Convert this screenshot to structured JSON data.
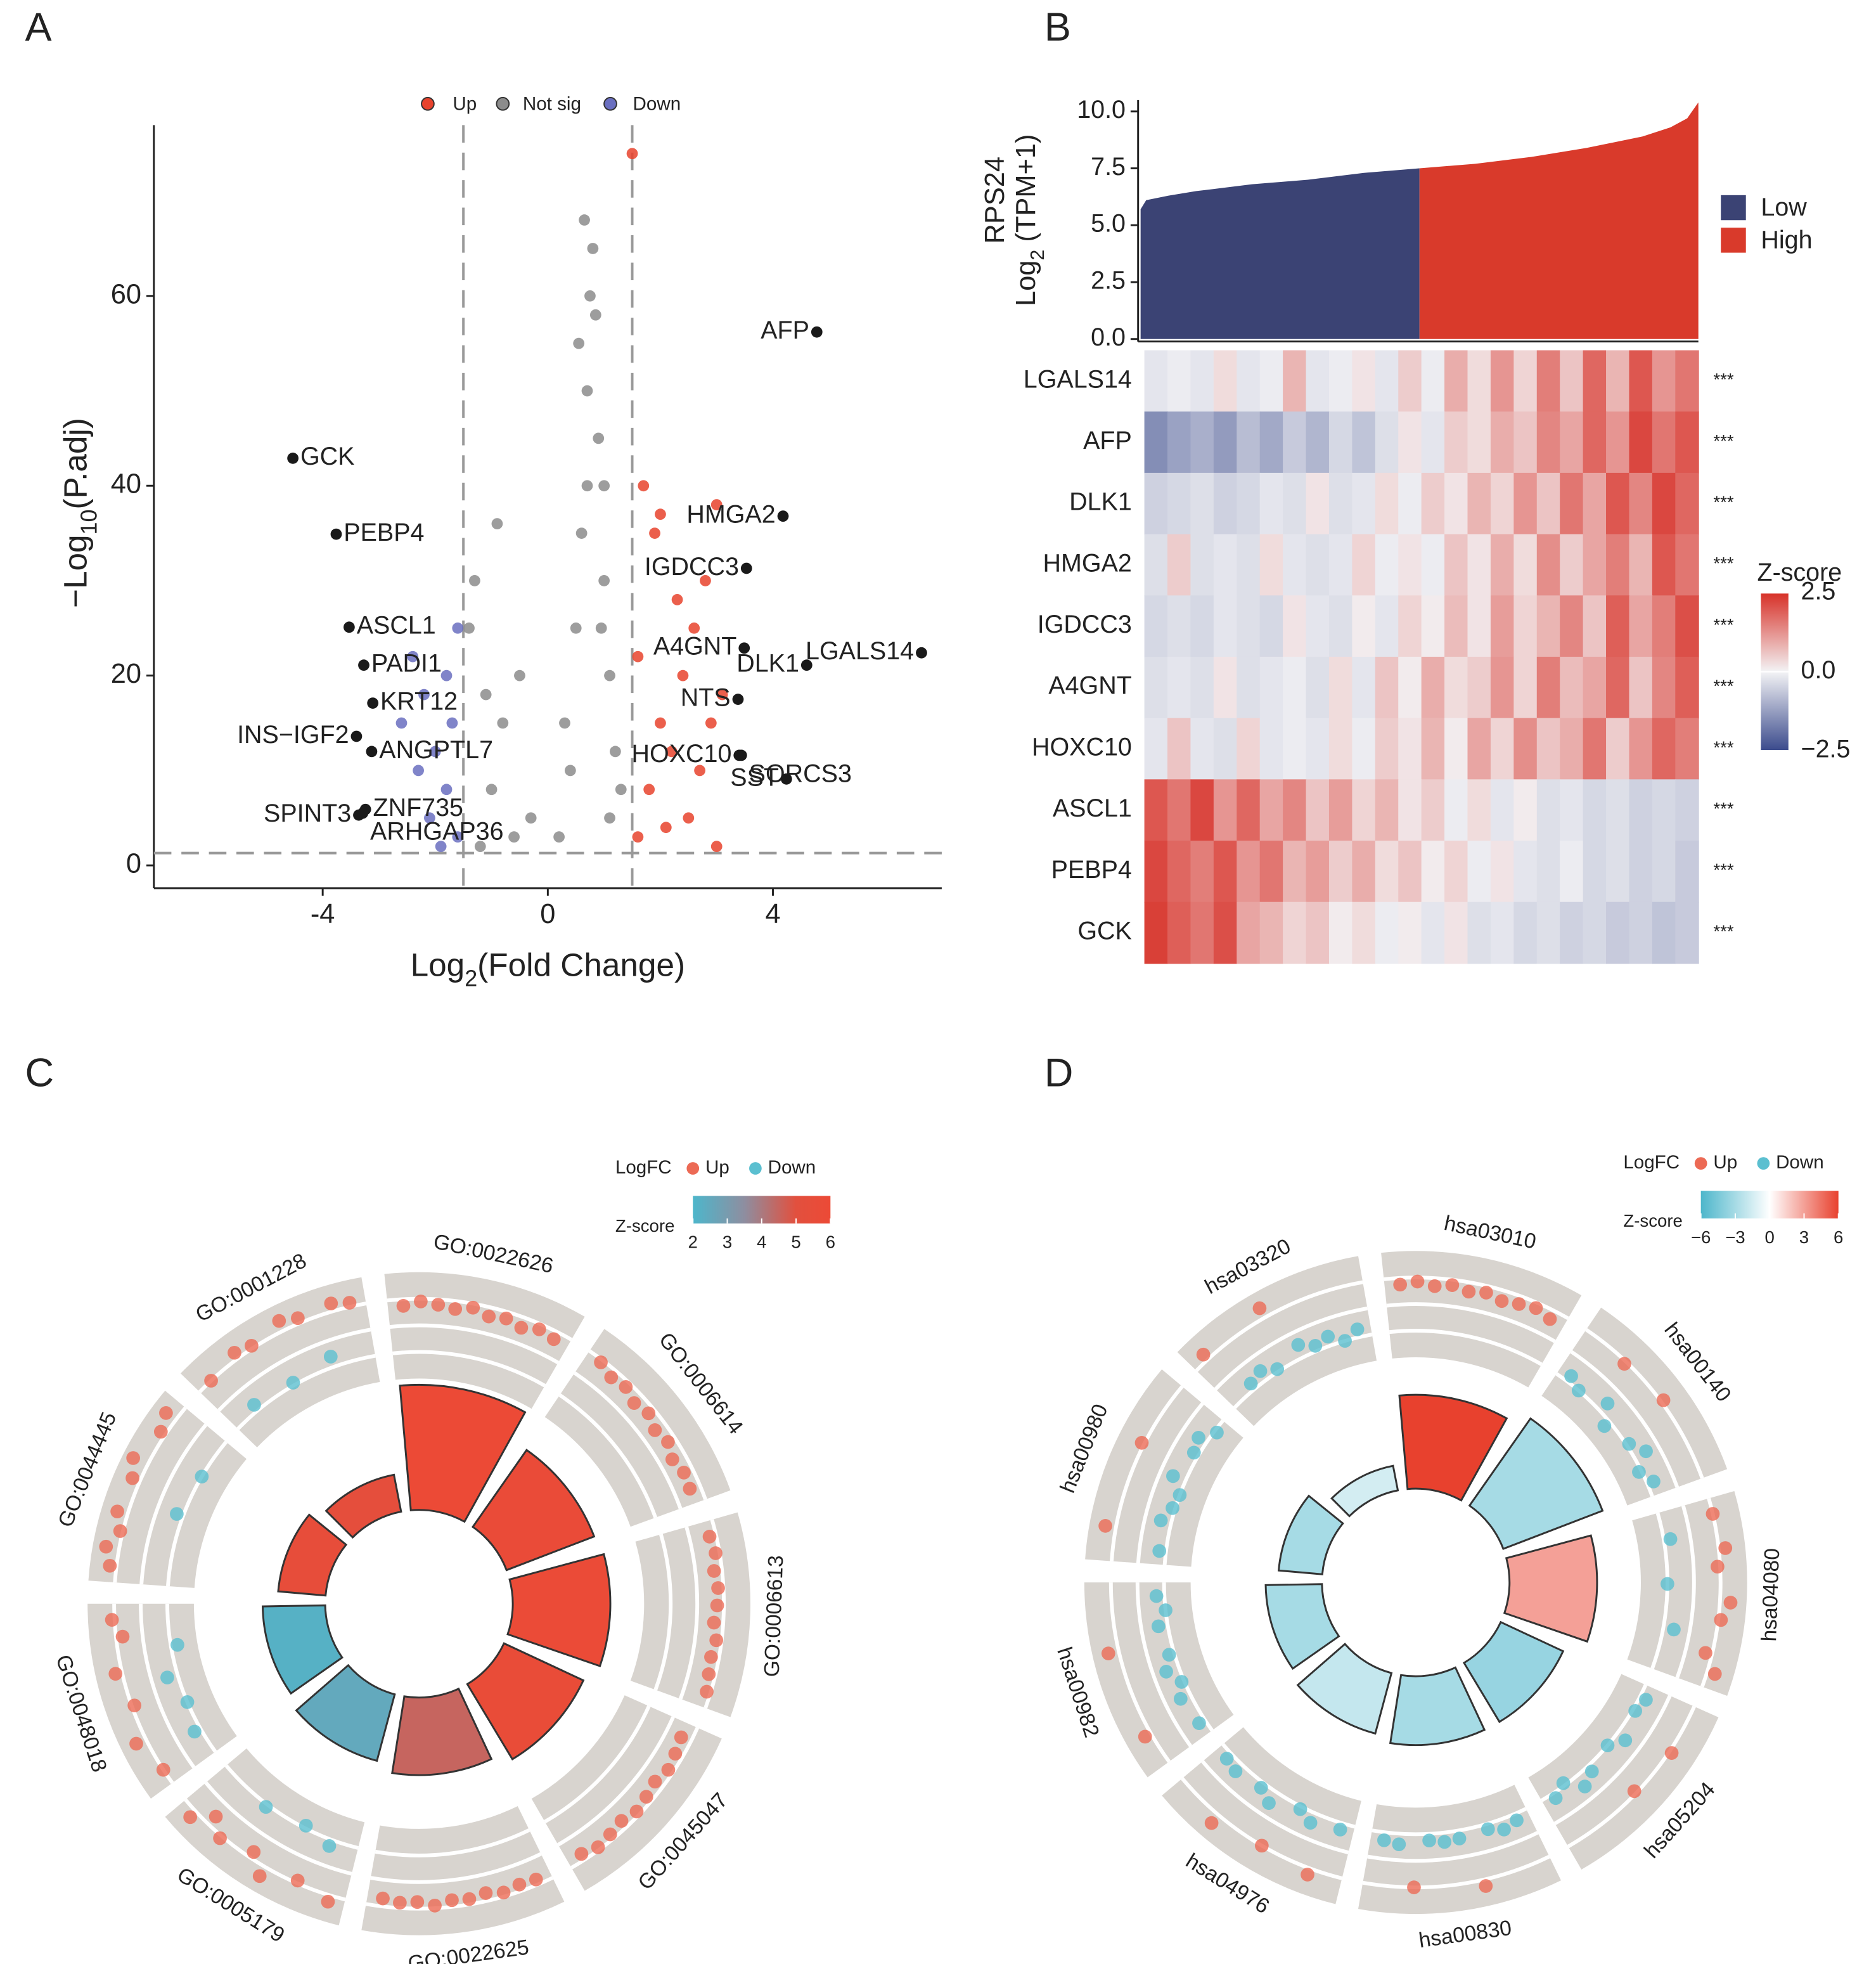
{
  "panels": [
    "A",
    "B",
    "C",
    "D"
  ],
  "chart_data": [
    {
      "type": "scatter",
      "x_label": [
        "Log",
        "2",
        "(Fold Change)"
      ],
      "y_label": [
        "−Log",
        "10",
        "(P.adj)"
      ],
      "xlim": [
        -7,
        7
      ],
      "ylim": [
        -2.4,
        78
      ],
      "xticks": [
        -4,
        0,
        4
      ],
      "yticks": [
        0,
        20,
        40,
        60
      ],
      "thresholds": {
        "x": [
          -1.5,
          1.5
        ],
        "y": 1.3
      },
      "series": [
        {
          "name": "Up",
          "color": "#e8432d",
          "x": [
            1.6,
            1.8,
            2.0,
            2.2,
            2.4,
            2.6,
            2.8,
            3.0,
            2.5,
            1.9,
            1.7,
            2.3,
            3.1,
            2.7,
            1.6,
            2.1,
            3.0,
            2.9,
            2.0,
            1.5
          ],
          "values": [
            3,
            8,
            15,
            12,
            20,
            25,
            30,
            38,
            5,
            35,
            40,
            28,
            18,
            10,
            22,
            4,
            2,
            15,
            37,
            75
          ]
        },
        {
          "name": "Not sig",
          "color": "#8c8c8c",
          "x": [
            -1.2,
            -1,
            -0.8,
            -0.5,
            -0.3,
            0.2,
            0.4,
            0.5,
            0.6,
            0.7,
            0.75,
            0.8,
            0.9,
            1.0,
            1.1,
            1.2,
            1.3,
            -1.4,
            -1.3,
            -0.9,
            0.65,
            0.55,
            1.0,
            0.3,
            -0.6,
            0.85,
            1.1,
            -1.1,
            0.95,
            0.7
          ],
          "values": [
            2,
            8,
            15,
            20,
            5,
            3,
            10,
            25,
            35,
            50,
            60,
            65,
            45,
            30,
            20,
            12,
            8,
            25,
            30,
            36,
            68,
            55,
            40,
            15,
            3,
            58,
            5,
            18,
            25,
            40
          ]
        },
        {
          "name": "Down",
          "color": "#6a6fc0",
          "x": [
            -1.6,
            -1.8,
            -2.0,
            -2.2,
            -2.4,
            -1.7,
            -1.9,
            -2.1,
            -2.6,
            -1.6,
            -2.3,
            -1.8
          ],
          "values": [
            3,
            8,
            12,
            18,
            22,
            15,
            2,
            5,
            15,
            25,
            10,
            20
          ]
        }
      ],
      "labeled": {
        "color": "#1a1a1a",
        "names": [
          "AFP",
          "GCK",
          "PEBP4",
          "HMGA2",
          "IGDCC3",
          "ASCL1",
          "A4GNT",
          "LGALS14",
          "PADI1",
          "DLK1",
          "NTS",
          "KRT12",
          "INS−IGF2",
          "ANGPTL7",
          "HOXC10",
          "SORCS3",
          "SST",
          "ZNF735",
          "SPINT3",
          "ARHGAP36"
        ],
        "x": [
          4.78,
          -4.53,
          -3.76,
          4.18,
          3.53,
          -3.53,
          3.49,
          6.64,
          -3.27,
          4.6,
          3.38,
          -3.11,
          -3.4,
          -3.13,
          3.4,
          3.44,
          4.24,
          -3.24,
          -3.36,
          -3.29
        ],
        "values": [
          56.2,
          42.9,
          34.9,
          36.8,
          31.3,
          25.1,
          22.9,
          22.4,
          21.1,
          21.1,
          17.5,
          17.1,
          13.6,
          12.0,
          11.6,
          11.6,
          9.1,
          5.9,
          5.3,
          5.5
        ]
      }
    },
    {
      "type": "area",
      "y_title": "RPS24",
      "y_label": [
        "Log",
        "2",
        " (TPM+1)"
      ],
      "xlim": [
        0,
        1
      ],
      "ylim": [
        0,
        10.5
      ],
      "yticks": [
        {
          "value": 0,
          "label": "0.0"
        },
        2.5,
        {
          "value": 5,
          "label": "5.0"
        },
        7.5,
        {
          "value": 10,
          "label": "10.0"
        }
      ],
      "series": [
        {
          "name": "Low",
          "color": "#3b4374",
          "x": [
            0,
            0.01,
            0.05,
            0.1,
            0.2,
            0.3,
            0.4,
            0.5
          ],
          "values": [
            5.7,
            6.1,
            6.3,
            6.5,
            6.8,
            7.0,
            7.3,
            7.5
          ]
        },
        {
          "name": "High",
          "color": "#d93a2b",
          "x": [
            0.5,
            0.6,
            0.7,
            0.8,
            0.9,
            0.95,
            0.98,
            1.0
          ],
          "values": [
            7.5,
            7.7,
            8.0,
            8.4,
            8.9,
            9.3,
            9.7,
            10.4
          ]
        }
      ]
    },
    {
      "type": "heatmap",
      "rows": [
        "LGALS14",
        "AFP",
        "DLK1",
        "HMGA2",
        "IGDCC3",
        "A4GNT",
        "HOXC10",
        "ASCL1",
        "PEBP4",
        "GCK"
      ],
      "values": [
        [
          -0.2,
          -0.1,
          -0.2,
          0.3,
          -0.2,
          -0.1,
          0.8,
          -0.2,
          -0.1,
          0.2,
          -0.2,
          0.5,
          -0.1,
          0.9,
          0.3,
          1.2,
          0.4,
          1.5,
          0.6,
          1.8,
          0.8,
          2.0,
          1.2,
          1.6
        ],
        [
          -1.5,
          -1.2,
          -1.0,
          -1.3,
          -0.8,
          -1.1,
          -0.6,
          -0.9,
          -0.4,
          -0.7,
          -0.3,
          0.2,
          -0.2,
          0.5,
          0.3,
          0.9,
          0.6,
          1.4,
          1.0,
          1.8,
          1.2,
          2.2,
          1.6,
          2.0
        ],
        [
          -0.5,
          -0.4,
          -0.3,
          -0.5,
          -0.4,
          -0.2,
          -0.3,
          0.2,
          -0.3,
          -0.2,
          0.3,
          -0.1,
          0.5,
          0.2,
          0.8,
          0.4,
          1.2,
          0.6,
          1.6,
          1.0,
          2.0,
          1.4,
          2.2,
          1.8
        ],
        [
          -0.3,
          0.5,
          -0.3,
          -0.2,
          -0.3,
          0.3,
          -0.2,
          -0.3,
          -0.2,
          0.4,
          -0.1,
          0.2,
          -0.1,
          0.6,
          0.2,
          0.9,
          0.3,
          1.3,
          0.5,
          1.0,
          1.5,
          0.8,
          2.0,
          1.6
        ],
        [
          -0.4,
          -0.3,
          -0.4,
          -0.2,
          -0.3,
          -0.4,
          0.2,
          -0.2,
          -0.3,
          0.1,
          -0.2,
          0.4,
          0.1,
          0.7,
          0.2,
          1.1,
          0.4,
          0.8,
          1.4,
          0.6,
          1.9,
          1.0,
          1.5,
          2.1
        ],
        [
          -0.3,
          -0.2,
          -0.3,
          0.2,
          -0.3,
          -0.2,
          -0.1,
          -0.3,
          0.3,
          -0.2,
          0.6,
          0.1,
          0.9,
          0.3,
          0.5,
          1.2,
          0.4,
          1.5,
          0.7,
          1.0,
          1.8,
          0.6,
          1.4,
          1.9
        ],
        [
          -0.2,
          0.6,
          -0.2,
          -0.3,
          0.4,
          -0.2,
          -0.1,
          -0.2,
          0.3,
          -0.1,
          0.5,
          0.2,
          0.8,
          0.1,
          1.0,
          0.4,
          1.3,
          0.6,
          0.9,
          1.6,
          0.5,
          1.2,
          1.8,
          1.5
        ],
        [
          2.0,
          1.6,
          2.2,
          1.2,
          1.8,
          1.0,
          1.4,
          0.6,
          1.1,
          0.4,
          0.8,
          0.2,
          0.5,
          -0.1,
          0.3,
          -0.2,
          0.1,
          -0.3,
          -0.2,
          -0.4,
          -0.3,
          -0.5,
          -0.4,
          -0.5
        ],
        [
          2.2,
          1.8,
          1.5,
          2.0,
          1.2,
          1.6,
          0.8,
          1.1,
          0.5,
          0.9,
          0.3,
          0.6,
          0.1,
          0.4,
          -0.1,
          0.2,
          -0.2,
          -0.3,
          -0.1,
          -0.4,
          -0.3,
          -0.5,
          -0.4,
          -0.6
        ],
        [
          2.3,
          1.9,
          1.6,
          2.1,
          1.0,
          0.8,
          0.4,
          0.6,
          0.1,
          0.3,
          -0.1,
          0.1,
          -0.2,
          0.2,
          -0.3,
          -0.2,
          -0.4,
          -0.3,
          -0.5,
          -0.4,
          -0.6,
          -0.5,
          -0.7,
          -0.6
        ]
      ],
      "significance": [
        "***",
        "***",
        "***",
        "***",
        "***",
        "***",
        "***",
        "***",
        "***",
        "***"
      ],
      "legend_title": "Z-score",
      "zlim": [
        -2.5,
        2.5
      ],
      "zticks": [
        2.5,
        {
          "value": 0,
          "label": "0.0"
        },
        {
          "value": -2.5,
          "label": "−2.5"
        }
      ],
      "colorscale": [
        [
          -2.5,
          "#3a4a8c"
        ],
        [
          0,
          "#f3f3f5"
        ],
        [
          2.5,
          "#d73027"
        ]
      ]
    },
    {
      "type": "circos",
      "terms": [
        "GO:0022626",
        "GO:0006614",
        "GO:0006613",
        "GO:0045047",
        "GO:0022625",
        "GO:0005179",
        "GO:0048018",
        "GO:0044445",
        "GO:0001228"
      ],
      "counts": [
        100,
        75,
        78,
        70,
        62,
        55,
        50,
        38,
        30
      ],
      "countlim": [
        0,
        100
      ],
      "zscores": [
        6,
        5.8,
        5.9,
        5.7,
        4.5,
        2.5,
        2.2,
        5.5,
        5.3
      ],
      "logfc": [
        [
          1.5,
          1.8,
          1.6,
          1.4,
          1.7,
          1.3,
          1.5,
          1.2,
          1.6,
          1.4
        ],
        [
          1.8,
          1.4,
          1.6,
          1.2,
          1.5,
          1.1,
          1.4,
          1.0,
          1.3,
          1.2
        ],
        [
          1.5,
          1.7,
          1.4,
          1.6,
          1.5,
          1.3,
          1.6,
          1.4,
          1.5,
          1.7
        ],
        [
          1.2,
          1.4,
          1.6,
          1.3,
          1.5,
          1.7,
          1.4,
          1.6,
          1.8,
          1.5
        ],
        [
          1.6,
          1.5,
          1.7,
          1.4,
          1.6,
          1.5,
          1.8,
          1.5,
          1.6,
          1.4
        ],
        [
          2.5,
          -1.5,
          1.8,
          -2.2,
          2.8,
          1.5,
          -1.8,
          2.2,
          1.2,
          2.6
        ],
        [
          2.0,
          -1.5,
          2.8,
          -2.0,
          1.8,
          -1.2,
          2.5,
          -2.5,
          1.5,
          2.2
        ],
        [
          2.5,
          3.0,
          2.2,
          2.8,
          -1.5,
          2.6,
          3.2,
          -2.0,
          2.4,
          2.9
        ],
        [
          2.0,
          -1.5,
          2.5,
          2.2,
          -1.8,
          2.8,
          2.4,
          -1.2,
          2.6,
          2.3
        ]
      ],
      "rlim": [
        -4,
        4
      ],
      "rgrid": [
        -2,
        0,
        2
      ],
      "legend": {
        "logfc_title": "LogFC",
        "up": "Up",
        "down": "Down",
        "z_title": "Z-score"
      },
      "up_color": "#ec6a55",
      "down_color": "#5bbfd0",
      "zticks": [
        2,
        3,
        4,
        5,
        6
      ],
      "colorscale": [
        [
          2,
          "#4db6cb"
        ],
        [
          3.5,
          "#8e8ea0"
        ],
        [
          5,
          "#e2503e"
        ],
        [
          6,
          "#ec4a36"
        ]
      ]
    },
    {
      "type": "circos",
      "terms": [
        "hsa03010",
        "hsa00140",
        "hsa04080",
        "hsa05204",
        "hsa00830",
        "hsa04976",
        "hsa00982",
        "hsa00980",
        "hsa03320"
      ],
      "counts": [
        75,
        85,
        70,
        55,
        55,
        50,
        45,
        35,
        20
      ],
      "countlim": [
        0,
        100
      ],
      "zscores": [
        6,
        -3,
        3,
        -3.5,
        -3,
        -2,
        -3,
        -3,
        -1.5
      ],
      "logfc": [
        [
          1.5,
          1.7,
          1.4,
          1.6,
          1.3,
          1.5,
          1.2,
          1.4,
          1.6,
          1.3
        ],
        [
          -1.5,
          -2.0,
          1.8,
          -1.2,
          -2.5,
          2.2,
          -1.8,
          -1.0,
          -2.2,
          -1.5
        ],
        [
          2.0,
          -1.5,
          2.5,
          1.8,
          -2.0,
          2.8,
          2.2,
          -1.2,
          1.5,
          2.6
        ],
        [
          -1.5,
          -1.8,
          2.2,
          -1.2,
          -2.0,
          1.8,
          -1.5,
          -1.0,
          -2.2,
          -1.6
        ],
        [
          -1.5,
          -1.2,
          -1.6,
          2.5,
          -1.4,
          -1.3,
          -1.5,
          2.0,
          -1.2,
          -1.4
        ],
        [
          -1.5,
          2.5,
          -1.2,
          -1.8,
          2.0,
          -1.0,
          -1.6,
          2.8,
          -1.3,
          -1.5
        ],
        [
          -1.5,
          2.5,
          -1.2,
          -1.8,
          -1.0,
          -1.6,
          2.8,
          -1.3,
          -2.0,
          -1.4
        ],
        [
          -1.5,
          2.8,
          -1.2,
          -1.8,
          -2.0,
          -1.0,
          2.2,
          -1.6,
          -1.3,
          -2.2
        ],
        [
          2.5,
          -1.5,
          -1.2,
          -1.8,
          2.8,
          -1.0,
          -1.6,
          -1.3,
          -2.0,
          -1.4
        ]
      ],
      "rlim": [
        -4,
        4
      ],
      "rgrid": [
        -2,
        0,
        2
      ],
      "legend": {
        "logfc_title": "LogFC",
        "up": "Up",
        "down": "Down",
        "z_title": "Z-score"
      },
      "up_color": "#ec6a55",
      "down_color": "#5bbfd0",
      "zticks": [
        {
          "value": -6,
          "label": "−6"
        },
        {
          "value": -3,
          "label": "−3"
        },
        0,
        3,
        6
      ],
      "colorscale": [
        [
          -6,
          "#4db6cb"
        ],
        [
          0,
          "#ffffff"
        ],
        [
          6,
          "#e8412e"
        ]
      ]
    }
  ]
}
